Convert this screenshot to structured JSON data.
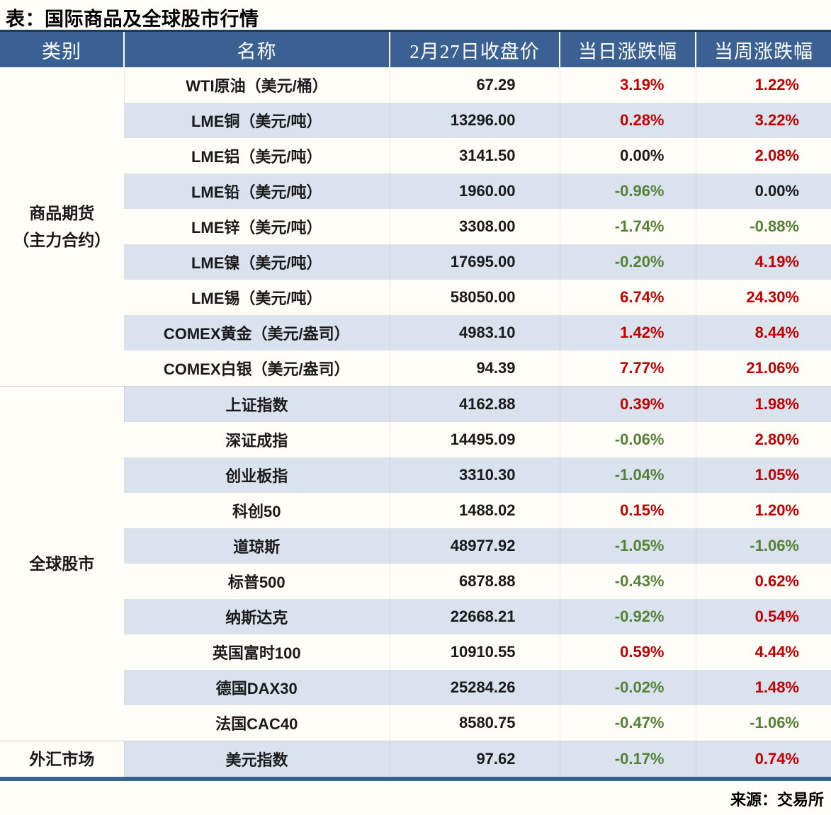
{
  "page": {
    "title": "表：国际商品及全球股市行情",
    "source": "来源：交易所"
  },
  "colors": {
    "header_bg": "#3a6191",
    "header_top_border": "#1e3a5f",
    "bottom_border": "#336590",
    "page_bg": "#fffdf7",
    "row_bg": "#fffdf7",
    "row_alt_bg": "#dae2ee",
    "up": "#c00000",
    "down": "#538135",
    "flat": "#1a1a1a"
  },
  "table": {
    "columns": [
      "类别",
      "名称",
      "2月27日收盘价",
      "当日涨跌幅",
      "当周涨跌幅"
    ],
    "groups": [
      {
        "category_lines": [
          "商品期货",
          "（主力合约）"
        ],
        "rows": [
          {
            "name": "WTI原油（美元/桶）",
            "close": "67.29",
            "day": "3.19%",
            "week": "1.22%"
          },
          {
            "name": "LME铜（美元/吨）",
            "close": "13296.00",
            "day": "0.28%",
            "week": "3.22%"
          },
          {
            "name": "LME铝（美元/吨）",
            "close": "3141.50",
            "day": "0.00%",
            "week": "2.08%"
          },
          {
            "name": "LME铅（美元/吨）",
            "close": "1960.00",
            "day": "-0.96%",
            "week": "0.00%"
          },
          {
            "name": "LME锌（美元/吨）",
            "close": "3308.00",
            "day": "-1.74%",
            "week": "-0.88%"
          },
          {
            "name": "LME镍（美元/吨）",
            "close": "17695.00",
            "day": "-0.20%",
            "week": "4.19%"
          },
          {
            "name": "LME锡（美元/吨）",
            "close": "58050.00",
            "day": "6.74%",
            "week": "24.30%"
          },
          {
            "name": "COMEX黄金（美元/盎司）",
            "close": "4983.10",
            "day": "1.42%",
            "week": "8.44%"
          },
          {
            "name": "COMEX白银（美元/盎司）",
            "close": "94.39",
            "day": "7.77%",
            "week": "21.06%"
          }
        ]
      },
      {
        "category_lines": [
          "全球股市"
        ],
        "rows": [
          {
            "name": "上证指数",
            "close": "4162.88",
            "day": "0.39%",
            "week": "1.98%"
          },
          {
            "name": "深证成指",
            "close": "14495.09",
            "day": "-0.06%",
            "week": "2.80%"
          },
          {
            "name": "创业板指",
            "close": "3310.30",
            "day": "-1.04%",
            "week": "1.05%"
          },
          {
            "name": "科创50",
            "close": "1488.02",
            "day": "0.15%",
            "week": "1.20%"
          },
          {
            "name": "道琼斯",
            "close": "48977.92",
            "day": "-1.05%",
            "week": "-1.06%"
          },
          {
            "name": "标普500",
            "close": "6878.88",
            "day": "-0.43%",
            "week": "0.62%"
          },
          {
            "name": "纳斯达克",
            "close": "22668.21",
            "day": "-0.92%",
            "week": "0.54%"
          },
          {
            "name": "英国富时100",
            "close": "10910.55",
            "day": "0.59%",
            "week": "4.44%"
          },
          {
            "name": "德国DAX30",
            "close": "25284.26",
            "day": "-0.02%",
            "week": "1.48%"
          },
          {
            "name": "法国CAC40",
            "close": "8580.75",
            "day": "-0.47%",
            "week": "-1.06%"
          }
        ]
      },
      {
        "category_lines": [
          "外汇市场"
        ],
        "rows": [
          {
            "name": "美元指数",
            "close": "97.62",
            "day": "-0.17%",
            "week": "0.74%"
          }
        ]
      }
    ]
  }
}
